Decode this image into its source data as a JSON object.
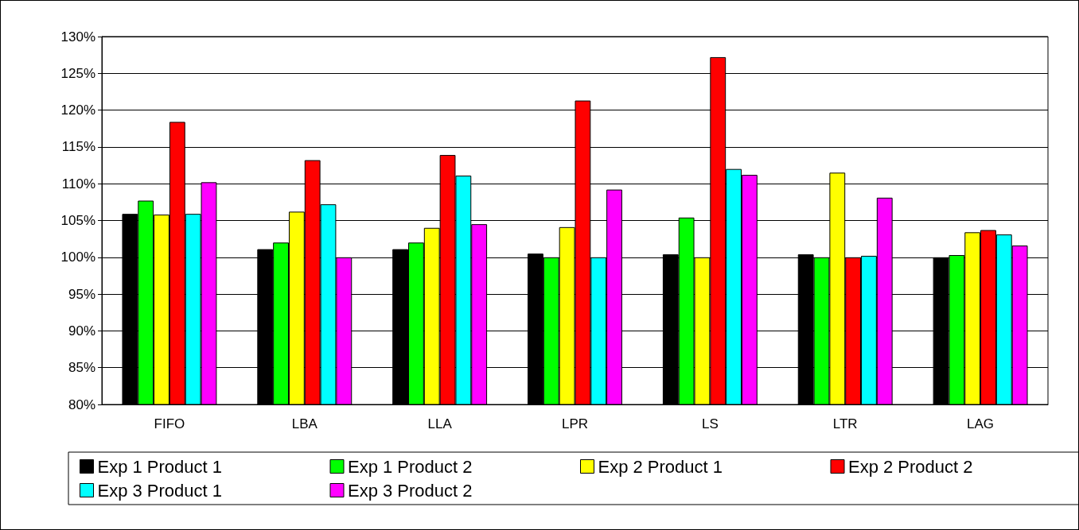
{
  "chart_data": {
    "type": "bar",
    "categories": [
      "FIFO",
      "LBA",
      "LLA",
      "LPR",
      "LS",
      "LTR",
      "LAG"
    ],
    "series": [
      {
        "name": "Exp 1 Product 1",
        "color": "#000000",
        "values": [
          105.9,
          101.1,
          101.1,
          100.5,
          100.4,
          100.4,
          100.0
        ]
      },
      {
        "name": "Exp 1 Product 2",
        "color": "#00ff00",
        "values": [
          107.7,
          102.0,
          102.0,
          100.0,
          105.4,
          100.0,
          100.3
        ]
      },
      {
        "name": "Exp 2 Product 1",
        "color": "#ffff00",
        "values": [
          105.8,
          106.2,
          104.0,
          104.1,
          100.0,
          111.5,
          103.4
        ]
      },
      {
        "name": "Exp 2 Product 2",
        "color": "#ff0000",
        "values": [
          118.4,
          113.2,
          113.9,
          121.3,
          127.2,
          100.0,
          103.7
        ]
      },
      {
        "name": "Exp 3 Product 1",
        "color": "#00ffff",
        "values": [
          105.9,
          107.2,
          111.1,
          100.0,
          112.0,
          100.2,
          103.1
        ]
      },
      {
        "name": "Exp 3 Product 2",
        "color": "#ff00ff",
        "values": [
          110.2,
          100.0,
          104.5,
          109.2,
          111.2,
          108.1,
          101.6
        ]
      }
    ],
    "ylim": [
      80,
      130
    ],
    "yticks": [
      {
        "value": 80,
        "label": "80%"
      },
      {
        "value": 85,
        "label": "85%"
      },
      {
        "value": 90,
        "label": "90%"
      },
      {
        "value": 95,
        "label": "95%"
      },
      {
        "value": 100,
        "label": "100%"
      },
      {
        "value": 105,
        "label": "105%"
      },
      {
        "value": 110,
        "label": "110%"
      },
      {
        "value": 115,
        "label": "115%"
      },
      {
        "value": 120,
        "label": "120%"
      },
      {
        "value": 125,
        "label": "125%"
      },
      {
        "value": 130,
        "label": "130%"
      }
    ],
    "grid": "y",
    "legend": "bottom"
  }
}
